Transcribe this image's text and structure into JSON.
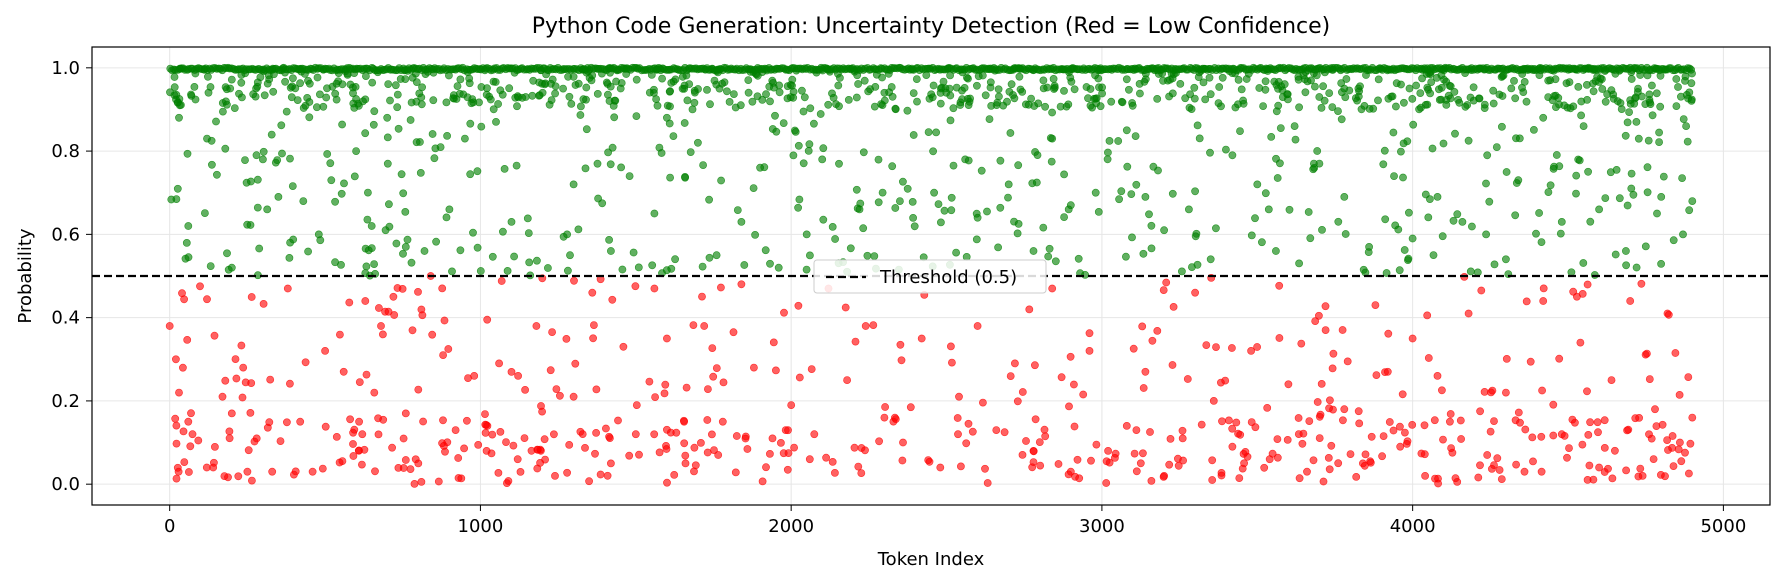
{
  "chart_data": {
    "type": "scatter",
    "title": "Python Code Generation: Uncertainty Detection (Red = Low Confidence)",
    "xlabel": "Token Index",
    "ylabel": "Probability",
    "xlim": [
      -250,
      5150
    ],
    "ylim": [
      -0.05,
      1.05
    ],
    "x_ticks": [
      0,
      1000,
      2000,
      3000,
      4000,
      5000
    ],
    "y_ticks": [
      0.0,
      0.2,
      0.4,
      0.6,
      0.8,
      1.0
    ],
    "y_tick_labels": [
      "0.0",
      "0.2",
      "0.4",
      "0.6",
      "0.8",
      "1.0"
    ],
    "grid": true,
    "threshold": {
      "value": 0.5,
      "label": "Threshold (0.5)",
      "style": "dashed",
      "color": "#000000"
    },
    "legend_position": "center",
    "total_tokens": 4900,
    "series": [
      {
        "name": "",
        "color": "#008000",
        "rule": "probability >= 0.5",
        "sample_points": [
          [
            30,
            0.88
          ],
          [
            60,
            0.62
          ],
          [
            120,
            0.83
          ],
          [
            200,
            0.52
          ],
          [
            300,
            0.78
          ],
          [
            350,
            0.69
          ],
          [
            430,
            0.68
          ],
          [
            480,
            0.6
          ],
          [
            520,
            0.73
          ],
          [
            600,
            0.8
          ],
          [
            650,
            0.62
          ],
          [
            700,
            0.88
          ],
          [
            760,
            0.57
          ],
          [
            820,
            0.56
          ],
          [
            900,
            0.66
          ],
          [
            950,
            0.83
          ],
          [
            1050,
            0.87
          ],
          [
            1100,
            0.63
          ],
          [
            1200,
            0.94
          ],
          [
            1300,
            0.72
          ],
          [
            1420,
            0.56
          ],
          [
            1480,
            0.74
          ],
          [
            1560,
            0.65
          ],
          [
            1600,
            0.88
          ],
          [
            1700,
            0.82
          ],
          [
            1760,
            0.55
          ],
          [
            1840,
            0.63
          ],
          [
            1900,
            0.76
          ],
          [
            1960,
            0.52
          ],
          [
            2050,
            0.6
          ],
          [
            2100,
            0.78
          ],
          [
            2180,
            0.51
          ],
          [
            2220,
            0.66
          ],
          [
            2300,
            0.94
          ],
          [
            2350,
            0.68
          ],
          [
            2460,
            0.7
          ],
          [
            2560,
            0.78
          ],
          [
            2600,
            0.64
          ],
          [
            2700,
            0.72
          ],
          [
            2780,
            0.56
          ],
          [
            2840,
            0.83
          ],
          [
            2900,
            0.67
          ],
          [
            2980,
            0.7
          ],
          [
            3080,
            0.85
          ],
          [
            3140,
            0.69
          ],
          [
            3200,
            0.61
          ],
          [
            3280,
            0.66
          ],
          [
            3350,
            0.54
          ],
          [
            3420,
            0.79
          ],
          [
            3500,
            0.72
          ],
          [
            3560,
            0.56
          ],
          [
            3620,
            0.86
          ],
          [
            3700,
            0.77
          ],
          [
            3780,
            0.69
          ],
          [
            3860,
            0.57
          ],
          [
            3940,
            0.74
          ],
          [
            4000,
            0.59
          ],
          [
            4080,
            0.69
          ],
          [
            4160,
            0.63
          ],
          [
            4240,
            0.79
          ],
          [
            4300,
            0.54
          ],
          [
            4340,
            0.73
          ],
          [
            4420,
            0.88
          ],
          [
            4480,
            0.63
          ],
          [
            4550,
            0.86
          ],
          [
            4600,
            0.66
          ],
          [
            4660,
            0.92
          ],
          [
            4720,
            0.87
          ],
          [
            4800,
            0.69
          ],
          [
            4870,
            0.6
          ],
          [
            4880,
            0.86
          ],
          [
            4900,
            0.68
          ]
        ],
        "plateau": {
          "y": 1.0,
          "x_from": 0,
          "x_to": 4900
        }
      },
      {
        "name": "",
        "color": "#ff0000",
        "rule": "probability < 0.5",
        "sample_points": [
          [
            0,
            0.38
          ],
          [
            20,
            0.3
          ],
          [
            30,
            0.22
          ],
          [
            60,
            0.15
          ],
          [
            140,
            0.04
          ],
          [
            170,
            0.21
          ],
          [
            200,
            0.17
          ],
          [
            250,
            0.03
          ],
          [
            280,
            0.11
          ],
          [
            330,
            0.03
          ],
          [
            380,
            0.47
          ],
          [
            420,
            0.15
          ],
          [
            460,
            0.03
          ],
          [
            500,
            0.32
          ],
          [
            560,
            0.27
          ],
          [
            620,
            0.12
          ],
          [
            680,
            0.38
          ],
          [
            720,
            0.45
          ],
          [
            760,
            0.17
          ],
          [
            800,
            0.05
          ],
          [
            840,
            0.5
          ],
          [
            880,
            0.31
          ],
          [
            920,
            0.13
          ],
          [
            980,
            0.26
          ],
          [
            1020,
            0.08
          ],
          [
            1060,
            0.29
          ],
          [
            1120,
            0.06
          ],
          [
            1180,
            0.38
          ],
          [
            1240,
            0.02
          ],
          [
            1300,
            0.21
          ],
          [
            1360,
            0.46
          ],
          [
            1420,
            0.05
          ],
          [
            1460,
            0.33
          ],
          [
            1500,
            0.12
          ],
          [
            1560,
            0.47
          ],
          [
            1600,
            0.35
          ],
          [
            1660,
            0.05
          ],
          [
            1720,
            0.38
          ],
          [
            1780,
            0.15
          ],
          [
            1840,
            0.48
          ],
          [
            1880,
            0.28
          ],
          [
            1940,
            0.11
          ],
          [
            2000,
            0.19
          ],
          [
            2060,
            0.06
          ],
          [
            2120,
            0.47
          ],
          [
            2180,
            0.25
          ],
          [
            2240,
            0.38
          ],
          [
            2300,
            0.16
          ],
          [
            2360,
            0.1
          ],
          [
            2420,
            0.35
          ],
          [
            2480,
            0.04
          ],
          [
            2540,
            0.21
          ],
          [
            2600,
            0.38
          ],
          [
            2660,
            0.13
          ],
          [
            2720,
            0.29
          ],
          [
            2780,
            0.08
          ],
          [
            2840,
            0.47
          ],
          [
            2900,
            0.03
          ],
          [
            2960,
            0.32
          ],
          [
            3020,
            0.08
          ],
          [
            3080,
            0.14
          ],
          [
            3140,
            0.27
          ],
          [
            3200,
            0.02
          ],
          [
            3260,
            0.11
          ],
          [
            3300,
            0.46
          ],
          [
            3360,
            0.2
          ],
          [
            3420,
            0.09
          ],
          [
            3480,
            0.32
          ],
          [
            3540,
            0.06
          ],
          [
            3600,
            0.24
          ],
          [
            3660,
            0.03
          ],
          [
            3720,
            0.37
          ],
          [
            3780,
            0.18
          ],
          [
            3840,
            0.05
          ],
          [
            3880,
            0.43
          ],
          [
            3920,
            0.27
          ],
          [
            3960,
            0.09
          ],
          [
            4000,
            0.35
          ],
          [
            4040,
            0.02
          ],
          [
            4080,
            0.26
          ],
          [
            4120,
            0.15
          ],
          [
            4180,
            0.41
          ],
          [
            4240,
            0.07
          ],
          [
            4300,
            0.22
          ],
          [
            4360,
            0.03
          ],
          [
            4420,
            0.44
          ],
          [
            4480,
            0.12
          ],
          [
            4540,
            0.34
          ],
          [
            4600,
            0.04
          ],
          [
            4640,
            0.25
          ],
          [
            4700,
            0.44
          ],
          [
            4740,
            0.02
          ],
          [
            4780,
            0.18
          ],
          [
            4820,
            0.41
          ],
          [
            4860,
            0.1
          ],
          [
            4900,
            0.16
          ]
        ]
      }
    ]
  }
}
